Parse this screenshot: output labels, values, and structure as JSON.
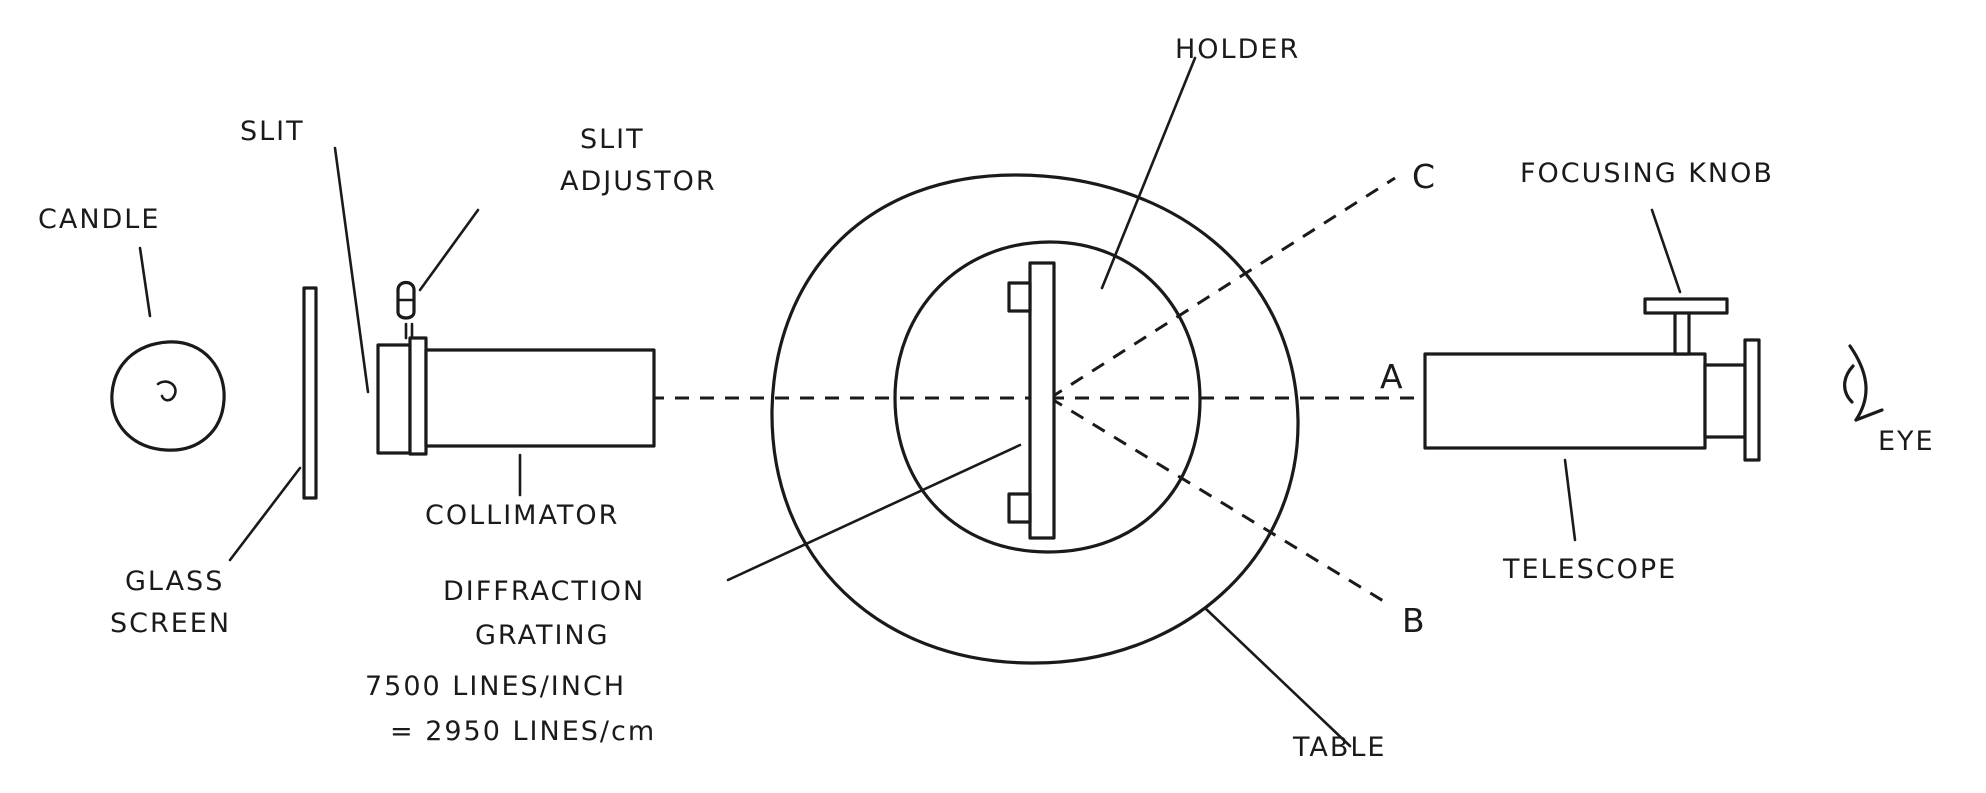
{
  "labels": {
    "holder": "HOLDER",
    "slit": "SLIT",
    "slit_adjustor_1": "SLIT",
    "slit_adjustor_2": "ADJUSTOR",
    "candle": "CANDLE",
    "c": "C",
    "focusing_knob": "FOCUSING KNOB",
    "a": "A",
    "eye": "EYE",
    "collimator": "COLLIMATOR",
    "glass_screen_1": "GLASS",
    "glass_screen_2": "SCREEN",
    "diffraction_grating_1": "DIFFRACTION",
    "diffraction_grating_2": "GRATING",
    "telescope": "TELESCOPE",
    "b": "B",
    "table": "TABLE",
    "lines_per_inch": "7500 LINES/INCH",
    "lines_per_cm": "= 2950 LINES/cm"
  }
}
